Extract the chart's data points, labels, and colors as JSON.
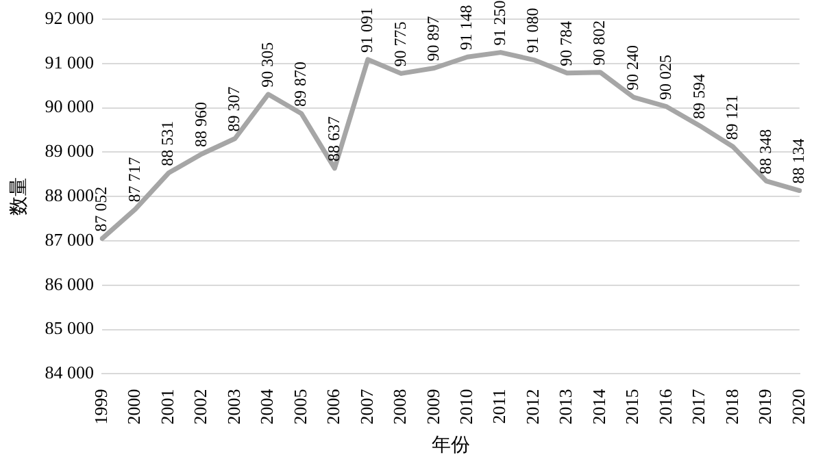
{
  "chart_data": {
    "type": "line",
    "xlabel": "年份",
    "ylabel": "数量",
    "categories": [
      "1999",
      "2000",
      "2001",
      "2002",
      "2003",
      "2004",
      "2005",
      "2006",
      "2007",
      "2008",
      "2009",
      "2010",
      "2011",
      "2012",
      "2013",
      "2014",
      "2015",
      "2016",
      "2017",
      "2018",
      "2019",
      "2020"
    ],
    "series": [
      {
        "color": "#a6a6a6",
        "values": [
          87052,
          87717,
          88531,
          88960,
          89307,
          90305,
          89870,
          88637,
          91091,
          90775,
          90897,
          91148,
          91250,
          91080,
          90784,
          90802,
          90240,
          90025,
          89594,
          89121,
          88348,
          88134
        ],
        "value_labels": [
          "87 052",
          "87 717",
          "88 531",
          "88 960",
          "89 307",
          "90 305",
          "89 870",
          "88 637",
          "91 091",
          "90 775",
          "90 897",
          "91 148",
          "91 250",
          "91 080",
          "90 784",
          "90 802",
          "90 240",
          "90 025",
          "89 594",
          "89 121",
          "88 348",
          "88 134"
        ]
      }
    ],
    "ylim": [
      84000,
      92000
    ],
    "yticks": [
      {
        "value": 84000,
        "label": "84 000"
      },
      {
        "value": 85000,
        "label": "85 000"
      },
      {
        "value": 86000,
        "label": "86 000"
      },
      {
        "value": 87000,
        "label": "87 000"
      },
      {
        "value": 88000,
        "label": "88 000"
      },
      {
        "value": 89000,
        "label": "89 000"
      },
      {
        "value": 90000,
        "label": "90 000"
      },
      {
        "value": 91000,
        "label": "91 000"
      },
      {
        "value": 92000,
        "label": "92 000"
      }
    ],
    "grid": "y",
    "legend": false,
    "marker": "none",
    "line_style": "solid"
  }
}
